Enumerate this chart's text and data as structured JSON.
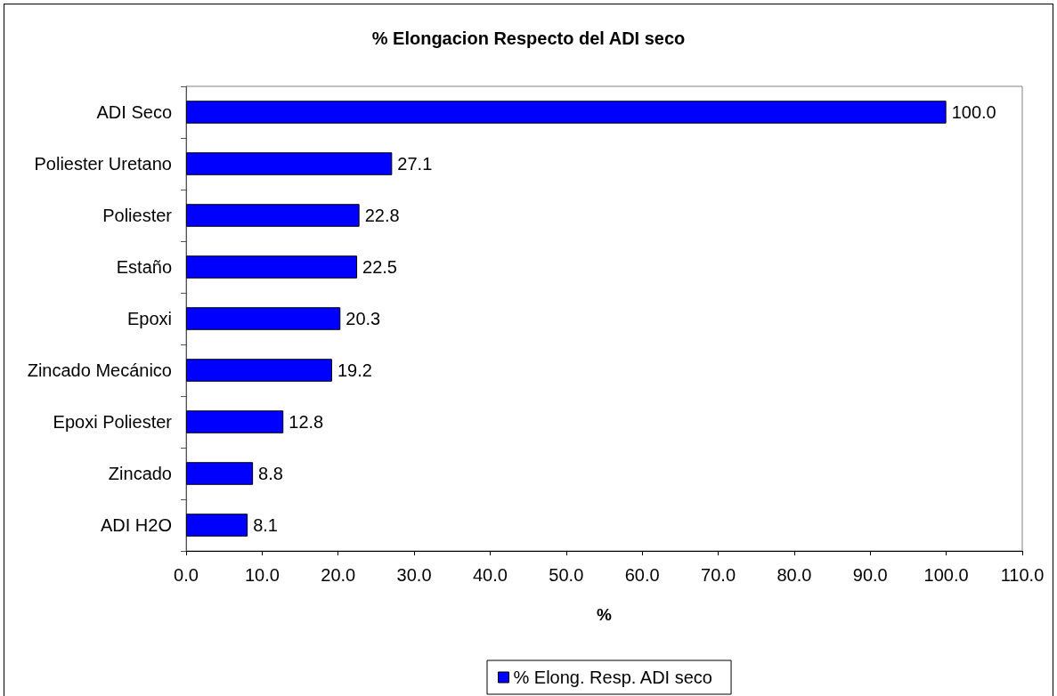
{
  "chart_data": {
    "type": "bar",
    "orientation": "horizontal",
    "title": "% Elongacion Respecto del ADI seco",
    "xlabel": "%",
    "categories": [
      "ADI Seco",
      "Poliester Uretano",
      "Poliester",
      "Estaño",
      "Epoxi",
      "Zincado Mecánico",
      "Epoxi Poliester",
      "Zincado",
      "ADI H2O"
    ],
    "series": [
      {
        "name": "% Elong. Resp. ADI seco",
        "color": "#0000ff",
        "values": [
          100.0,
          27.1,
          22.8,
          22.5,
          20.3,
          19.2,
          12.8,
          8.8,
          8.1
        ],
        "value_labels": [
          "100.0",
          "27.1",
          "22.8",
          "22.5",
          "20.3",
          "19.2",
          "12.8",
          "8.8",
          "8.1"
        ]
      }
    ],
    "xlim": [
      0,
      110
    ],
    "xticks": [
      {
        "value": 0,
        "label": "0.0"
      },
      {
        "value": 10,
        "label": "10.0"
      },
      {
        "value": 20,
        "label": "20.0"
      },
      {
        "value": 30,
        "label": "30.0"
      },
      {
        "value": 40,
        "label": "40.0"
      },
      {
        "value": 50,
        "label": "50.0"
      },
      {
        "value": 60,
        "label": "60.0"
      },
      {
        "value": 70,
        "label": "70.0"
      },
      {
        "value": 80,
        "label": "80.0"
      },
      {
        "value": 90,
        "label": "90.0"
      },
      {
        "value": 100,
        "label": "100.0"
      },
      {
        "value": 110,
        "label": "110.0"
      }
    ],
    "legend": "bottom",
    "grid": false
  }
}
